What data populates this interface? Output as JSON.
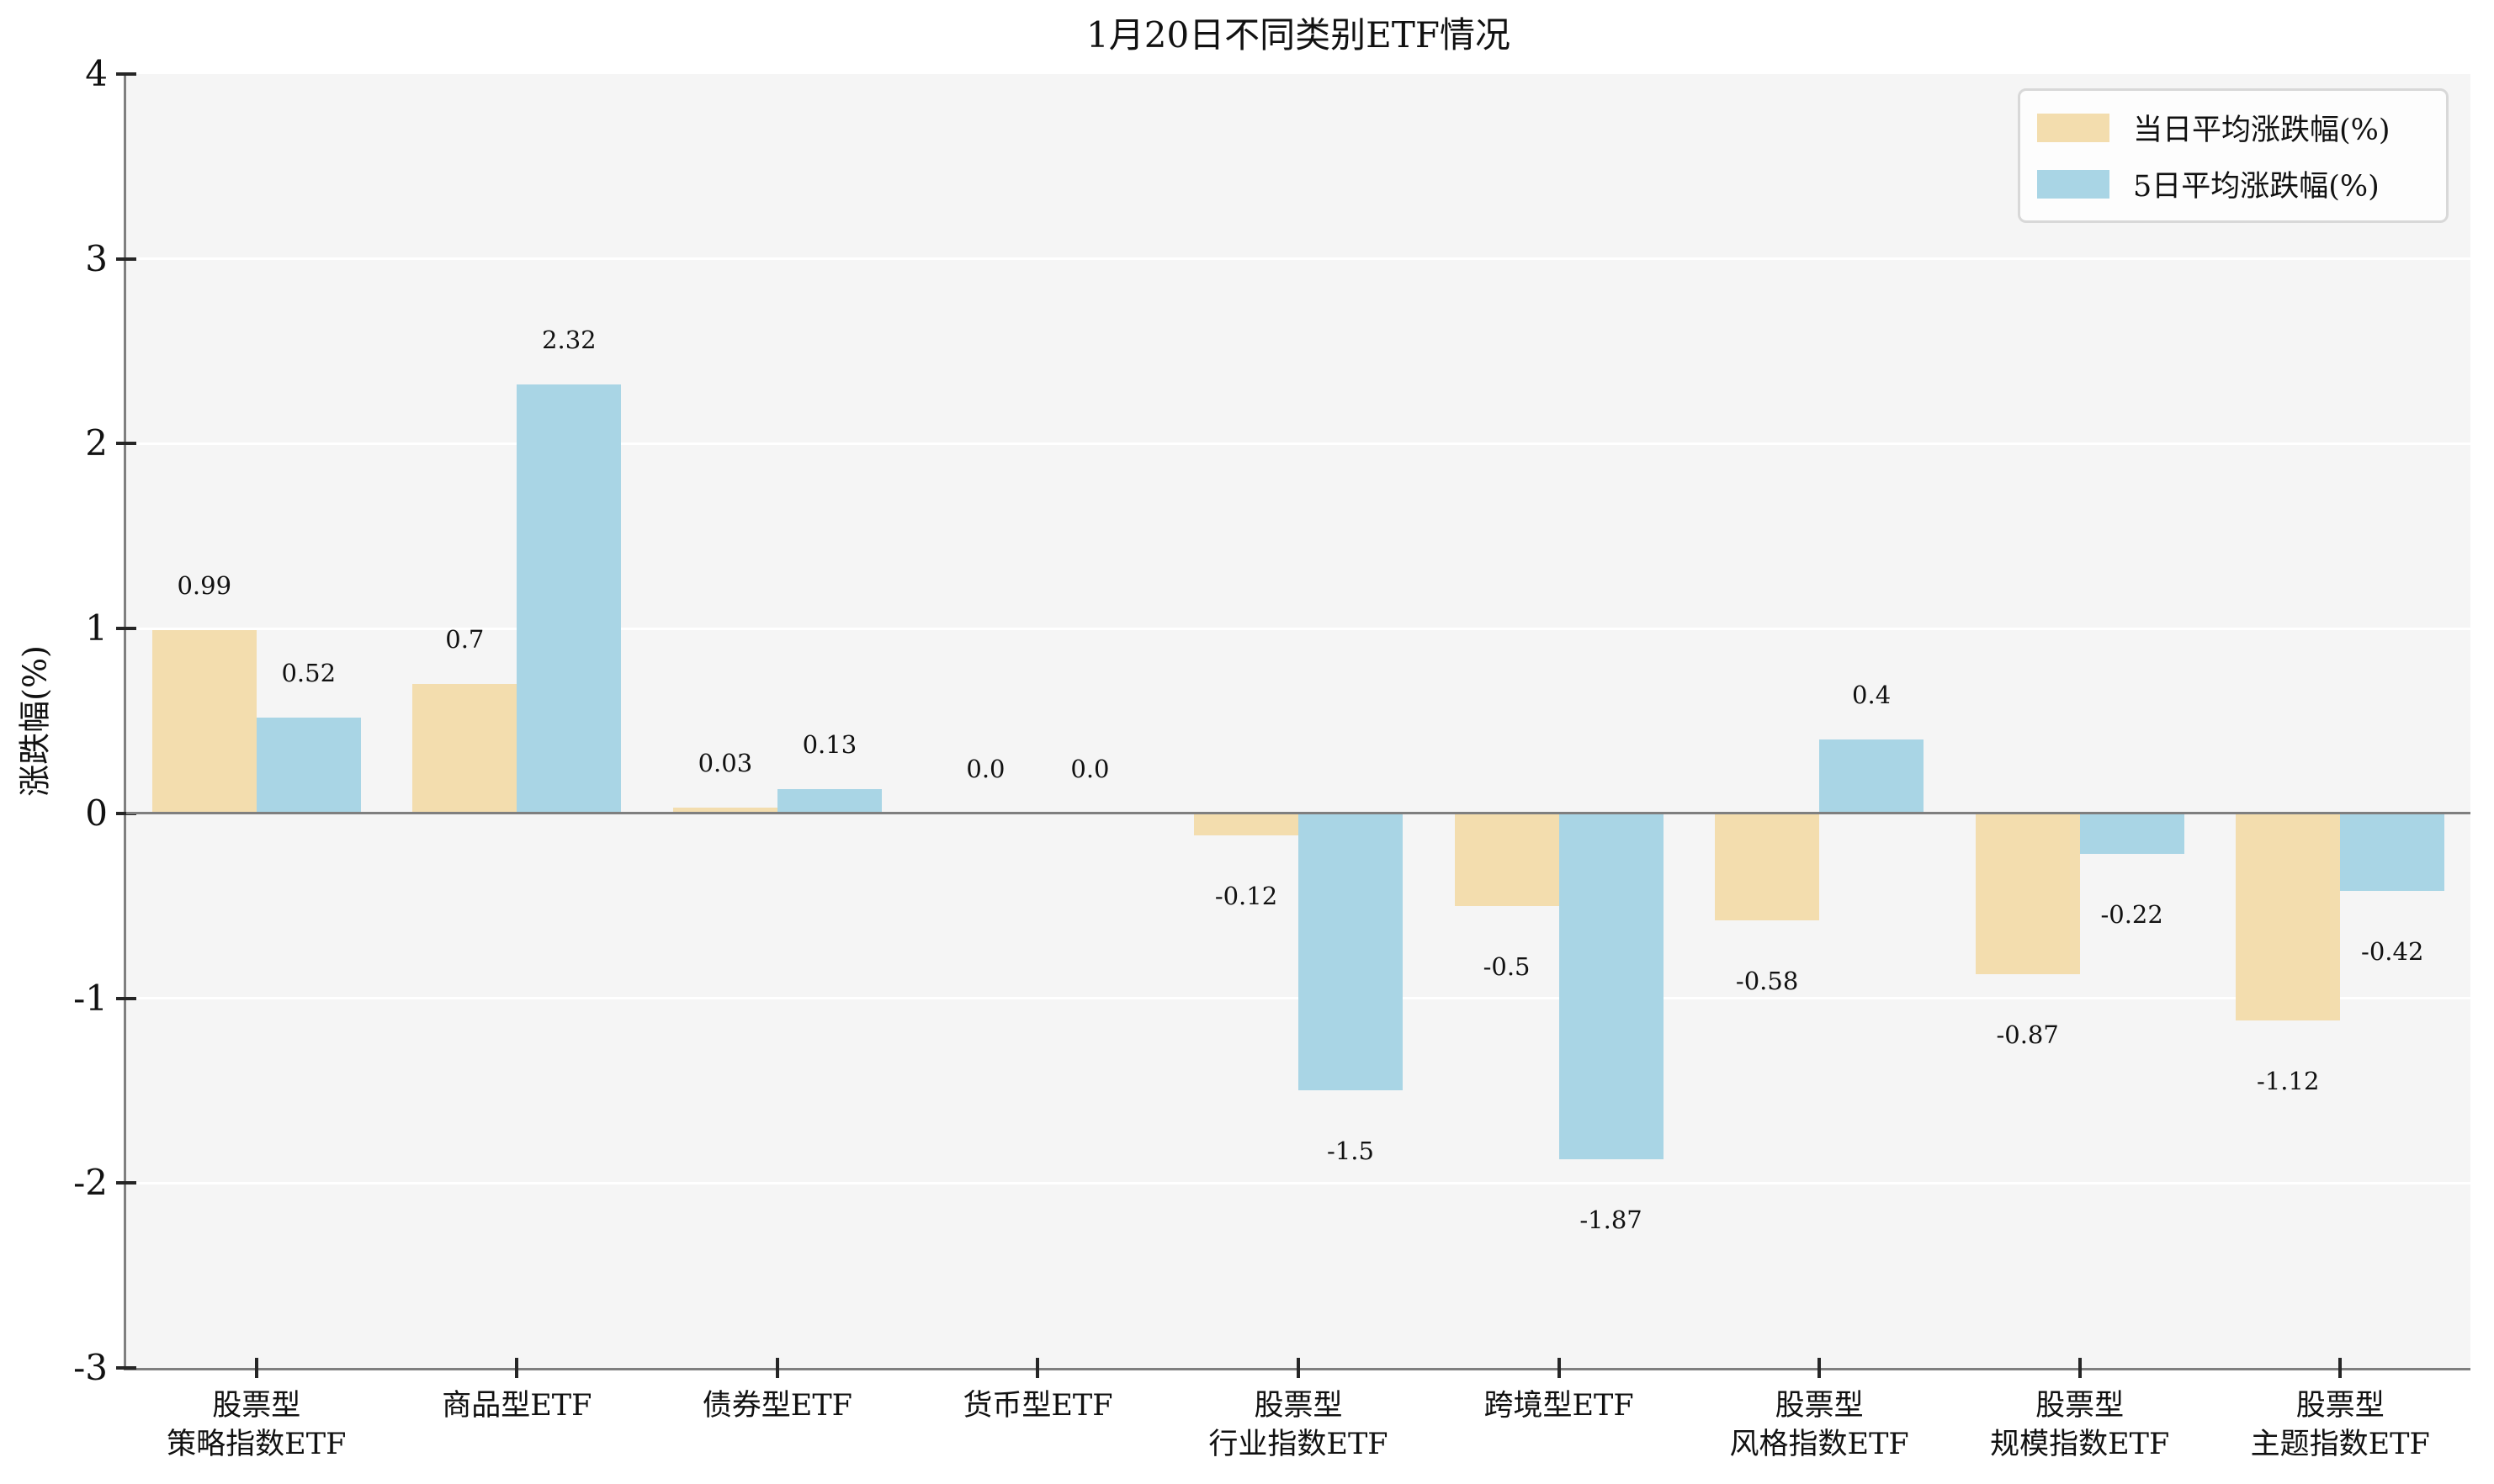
{
  "chart_data": {
    "type": "bar",
    "title": "1月20日不同类别ETF情况",
    "ylabel": "涨跌幅(%)",
    "xlabel": "",
    "ylim": [
      -3,
      4
    ],
    "yticks": [
      4,
      3,
      2,
      1,
      0,
      -1,
      -2,
      -3
    ],
    "grid": "horizontal-white-on-lightgray",
    "legend_position": "top-right",
    "categories": [
      [
        "股票型",
        "策略指数ETF"
      ],
      [
        "商品型ETF"
      ],
      [
        "债券型ETF"
      ],
      [
        "货币型ETF"
      ],
      [
        "股票型",
        "行业指数ETF"
      ],
      [
        "跨境型ETF"
      ],
      [
        "股票型",
        "风格指数ETF"
      ],
      [
        "股票型",
        "规模指数ETF"
      ],
      [
        "股票型",
        "主题指数ETF"
      ]
    ],
    "series": [
      {
        "name": "当日平均涨跌幅(%)",
        "color": "#f3ddae",
        "values": [
          0.99,
          0.7,
          0.03,
          0.0,
          -0.12,
          -0.5,
          -0.58,
          -0.87,
          -1.12
        ],
        "labels": [
          "0.99",
          "0.7",
          "0.03",
          "0.0",
          "-0.12",
          "-0.5",
          "-0.58",
          "-0.87",
          "-1.12"
        ]
      },
      {
        "name": "5日平均涨跌幅(%)",
        "color": "#a9d5e5",
        "values": [
          0.52,
          2.32,
          0.13,
          0.0,
          -1.5,
          -1.87,
          0.4,
          -0.22,
          -0.42
        ],
        "labels": [
          "0.52",
          "2.32",
          "0.13",
          "0.0",
          "-1.5",
          "-1.87",
          "0.4",
          "-0.22",
          "-0.42"
        ]
      }
    ],
    "colors": {
      "plot_background": "#f5f5f5",
      "figure_background": "#ffffff",
      "gridline": "#ffffff",
      "spine": "#7f7f7f",
      "zero_line": "#7f7f7f",
      "tick_mark": "#262626",
      "text": "#111111"
    }
  }
}
